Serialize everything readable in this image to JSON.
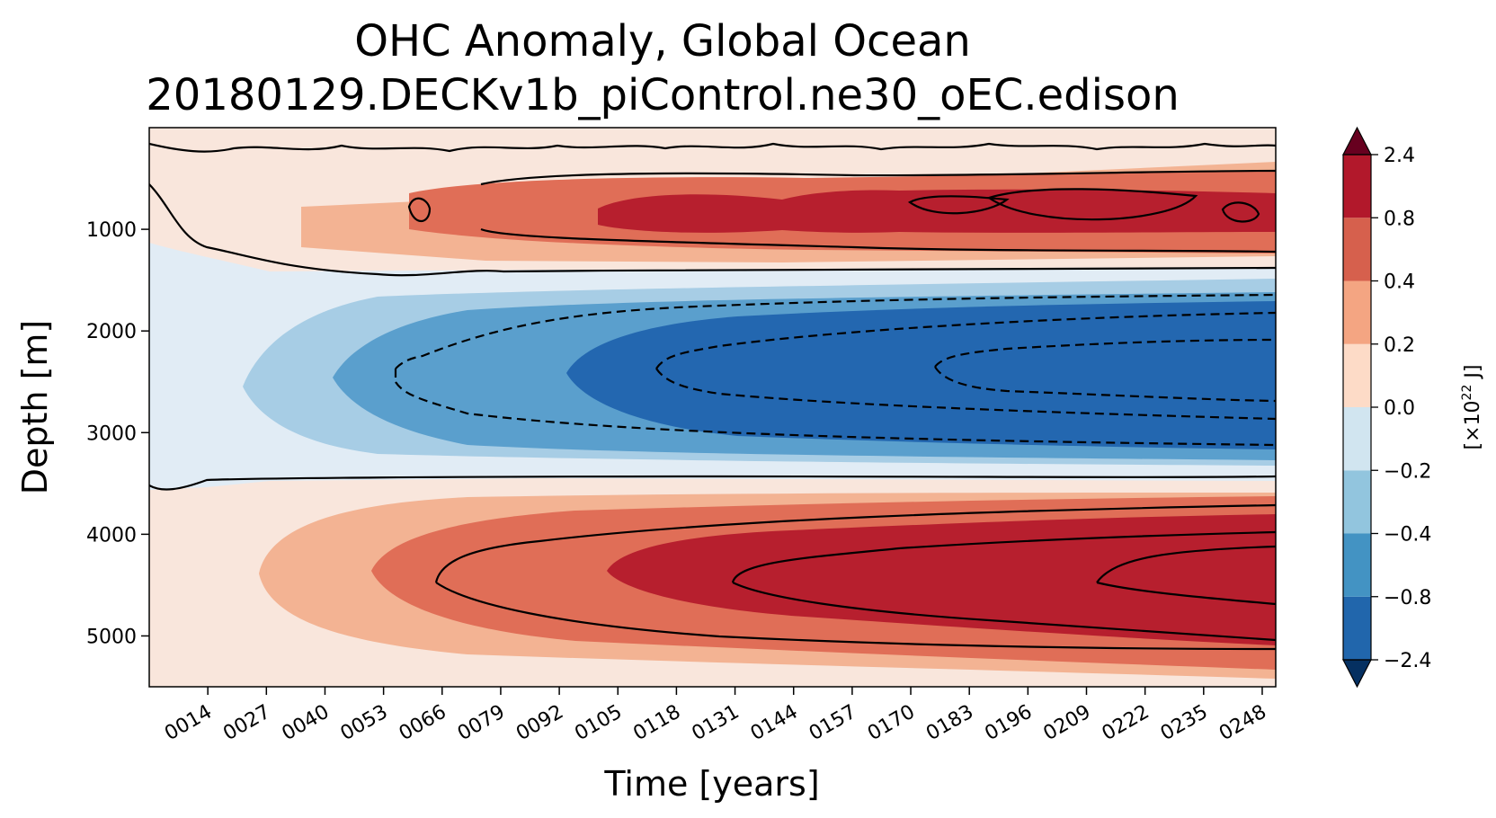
{
  "chart_data": {
    "type": "heatmap",
    "title_line1": "OHC Anomaly, Global Ocean",
    "title_line2": "20180129.DECKv1b_piControl.ne30_oEC.edison",
    "xlabel": "Time [years]",
    "ylabel": "Depth [m]",
    "xlim": [
      1,
      251
    ],
    "ylim": [
      5500,
      0
    ],
    "x_ticks": [
      "0014",
      "0027",
      "0040",
      "0053",
      "0066",
      "0079",
      "0092",
      "0105",
      "0118",
      "0131",
      "0144",
      "0157",
      "0170",
      "0183",
      "0196",
      "0209",
      "0222",
      "0235",
      "0248"
    ],
    "x_tick_values": [
      14,
      27,
      40,
      53,
      66,
      79,
      92,
      105,
      118,
      131,
      144,
      157,
      170,
      183,
      196,
      209,
      222,
      235,
      248
    ],
    "y_ticks": [
      "1000",
      "2000",
      "3000",
      "4000",
      "5000"
    ],
    "y_tick_values": [
      1000,
      2000,
      3000,
      4000,
      5000
    ],
    "colorbar": {
      "label": "[×10",
      "label_exp": "22",
      "label_unit": " J]",
      "levels": [
        "−2.4",
        "−0.8",
        "−0.4",
        "−0.2",
        "0.0",
        "0.2",
        "0.4",
        "0.8",
        "2.4"
      ],
      "colors": [
        "#2166ac",
        "#4393c3",
        "#92c5de",
        "#d1e5f0",
        "#fddbc7",
        "#f4a582",
        "#d6604d",
        "#b2182b"
      ],
      "under_color": "#053061",
      "over_color": "#67001f"
    },
    "colors": {
      "bg_neutral": "#f9e6dc",
      "neg1": "#e1ecf5",
      "neg2": "#a7cde5",
      "neg3": "#5a9fcd",
      "neg4": "#2367b0",
      "pos1": "#f9e6dc",
      "pos2": "#f3b393",
      "pos3": "#e06e57",
      "pos4": "#b71f2e"
    }
  }
}
